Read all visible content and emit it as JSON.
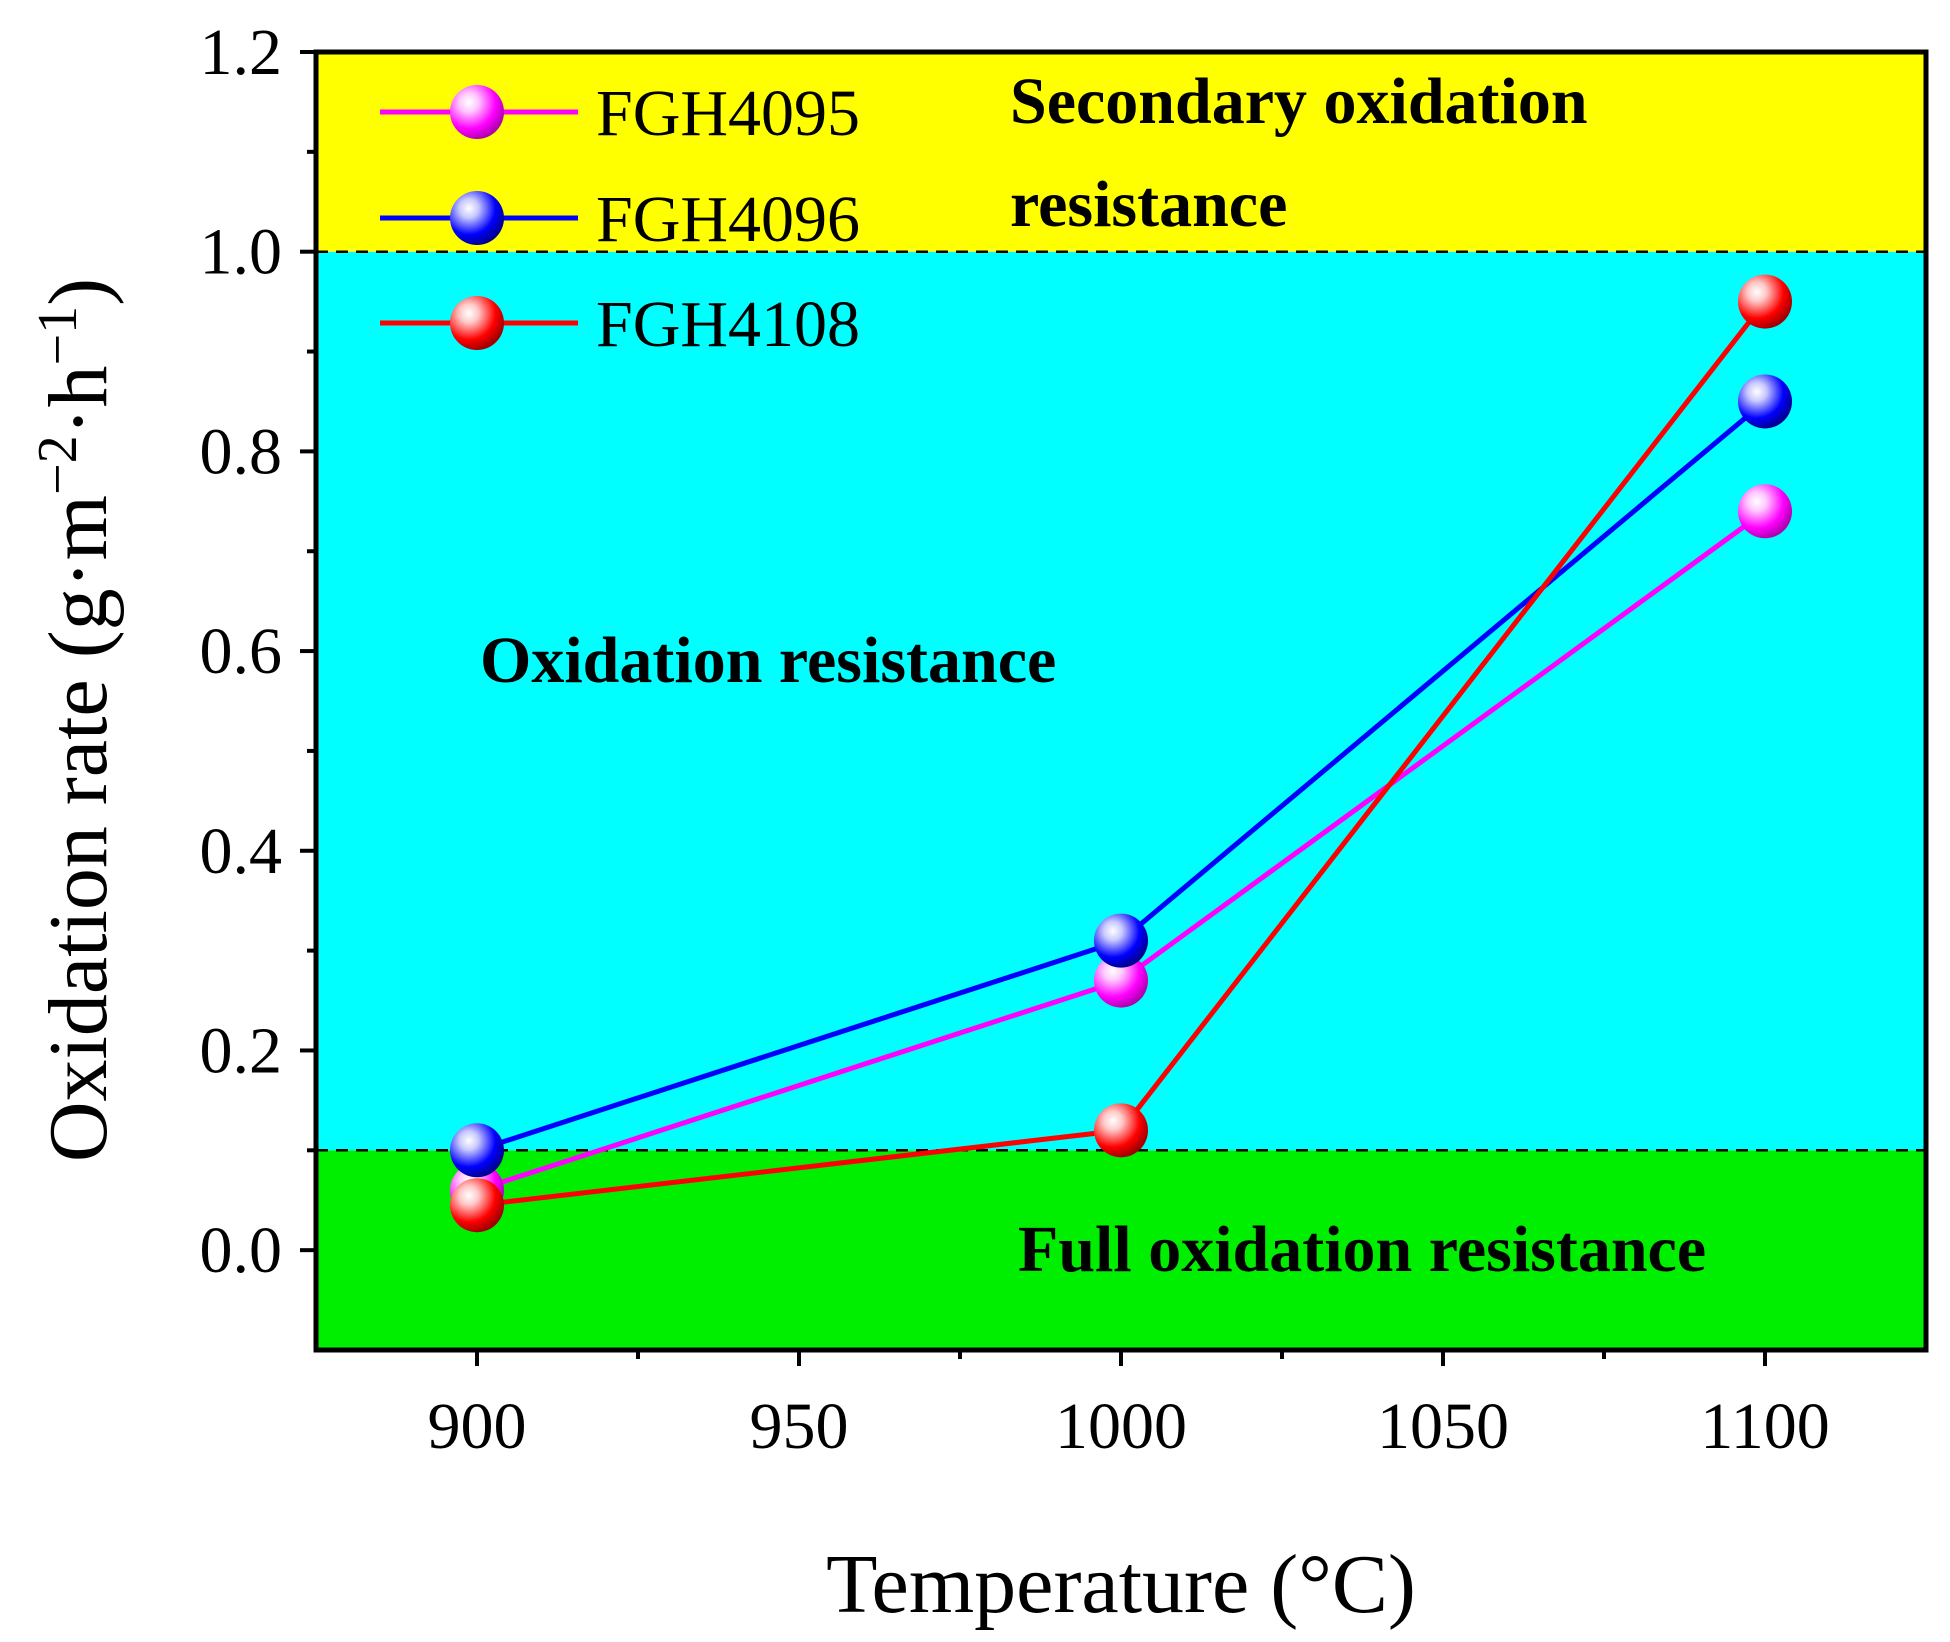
{
  "chart_data": {
    "type": "line",
    "title": "",
    "xlabel": "Temperature (°C)",
    "ylabel_main": "Oxidation rate (g·m",
    "ylabel_sup1": "−2",
    "ylabel_mid": "·h",
    "ylabel_sup2": "−1",
    "ylabel_end": ")",
    "xlim": [
      875,
      1125
    ],
    "ylim": [
      -0.1,
      1.2
    ],
    "x_ticks": [
      900,
      950,
      1000,
      1050,
      1100
    ],
    "x_tick_labels": [
      "900",
      "950",
      "1000",
      "1050",
      "1100"
    ],
    "y_ticks": [
      0.0,
      0.2,
      0.4,
      0.6,
      0.8,
      1.0,
      1.2
    ],
    "y_tick_labels": [
      "0.0",
      "0.2",
      "0.4",
      "0.6",
      "0.8",
      "1.0",
      "1.2"
    ],
    "x": [
      900,
      1000,
      1100
    ],
    "series": [
      {
        "name": "FGH4095",
        "color": "#ff00ff",
        "values": [
          0.06,
          0.27,
          0.74
        ]
      },
      {
        "name": "FGH4096",
        "color": "#0000ff",
        "values": [
          0.1,
          0.31,
          0.85
        ]
      },
      {
        "name": "FGH4108",
        "color": "#ff0000",
        "values": [
          0.045,
          0.12,
          0.95
        ]
      }
    ],
    "regions": [
      {
        "label": "Full oxidation resistance",
        "from": -0.1,
        "to": 0.1,
        "color": "#00ee00"
      },
      {
        "label": "Oxidation resistance",
        "from": 0.1,
        "to": 1.0,
        "color": "#00ffff"
      },
      {
        "label_line1": "Secondary oxidation",
        "label_line2": "resistance",
        "from": 1.0,
        "to": 1.2,
        "color": "#ffff00"
      }
    ],
    "thresholds": [
      0.1,
      1.0
    ],
    "legend_position": "top-left",
    "grid": false
  }
}
